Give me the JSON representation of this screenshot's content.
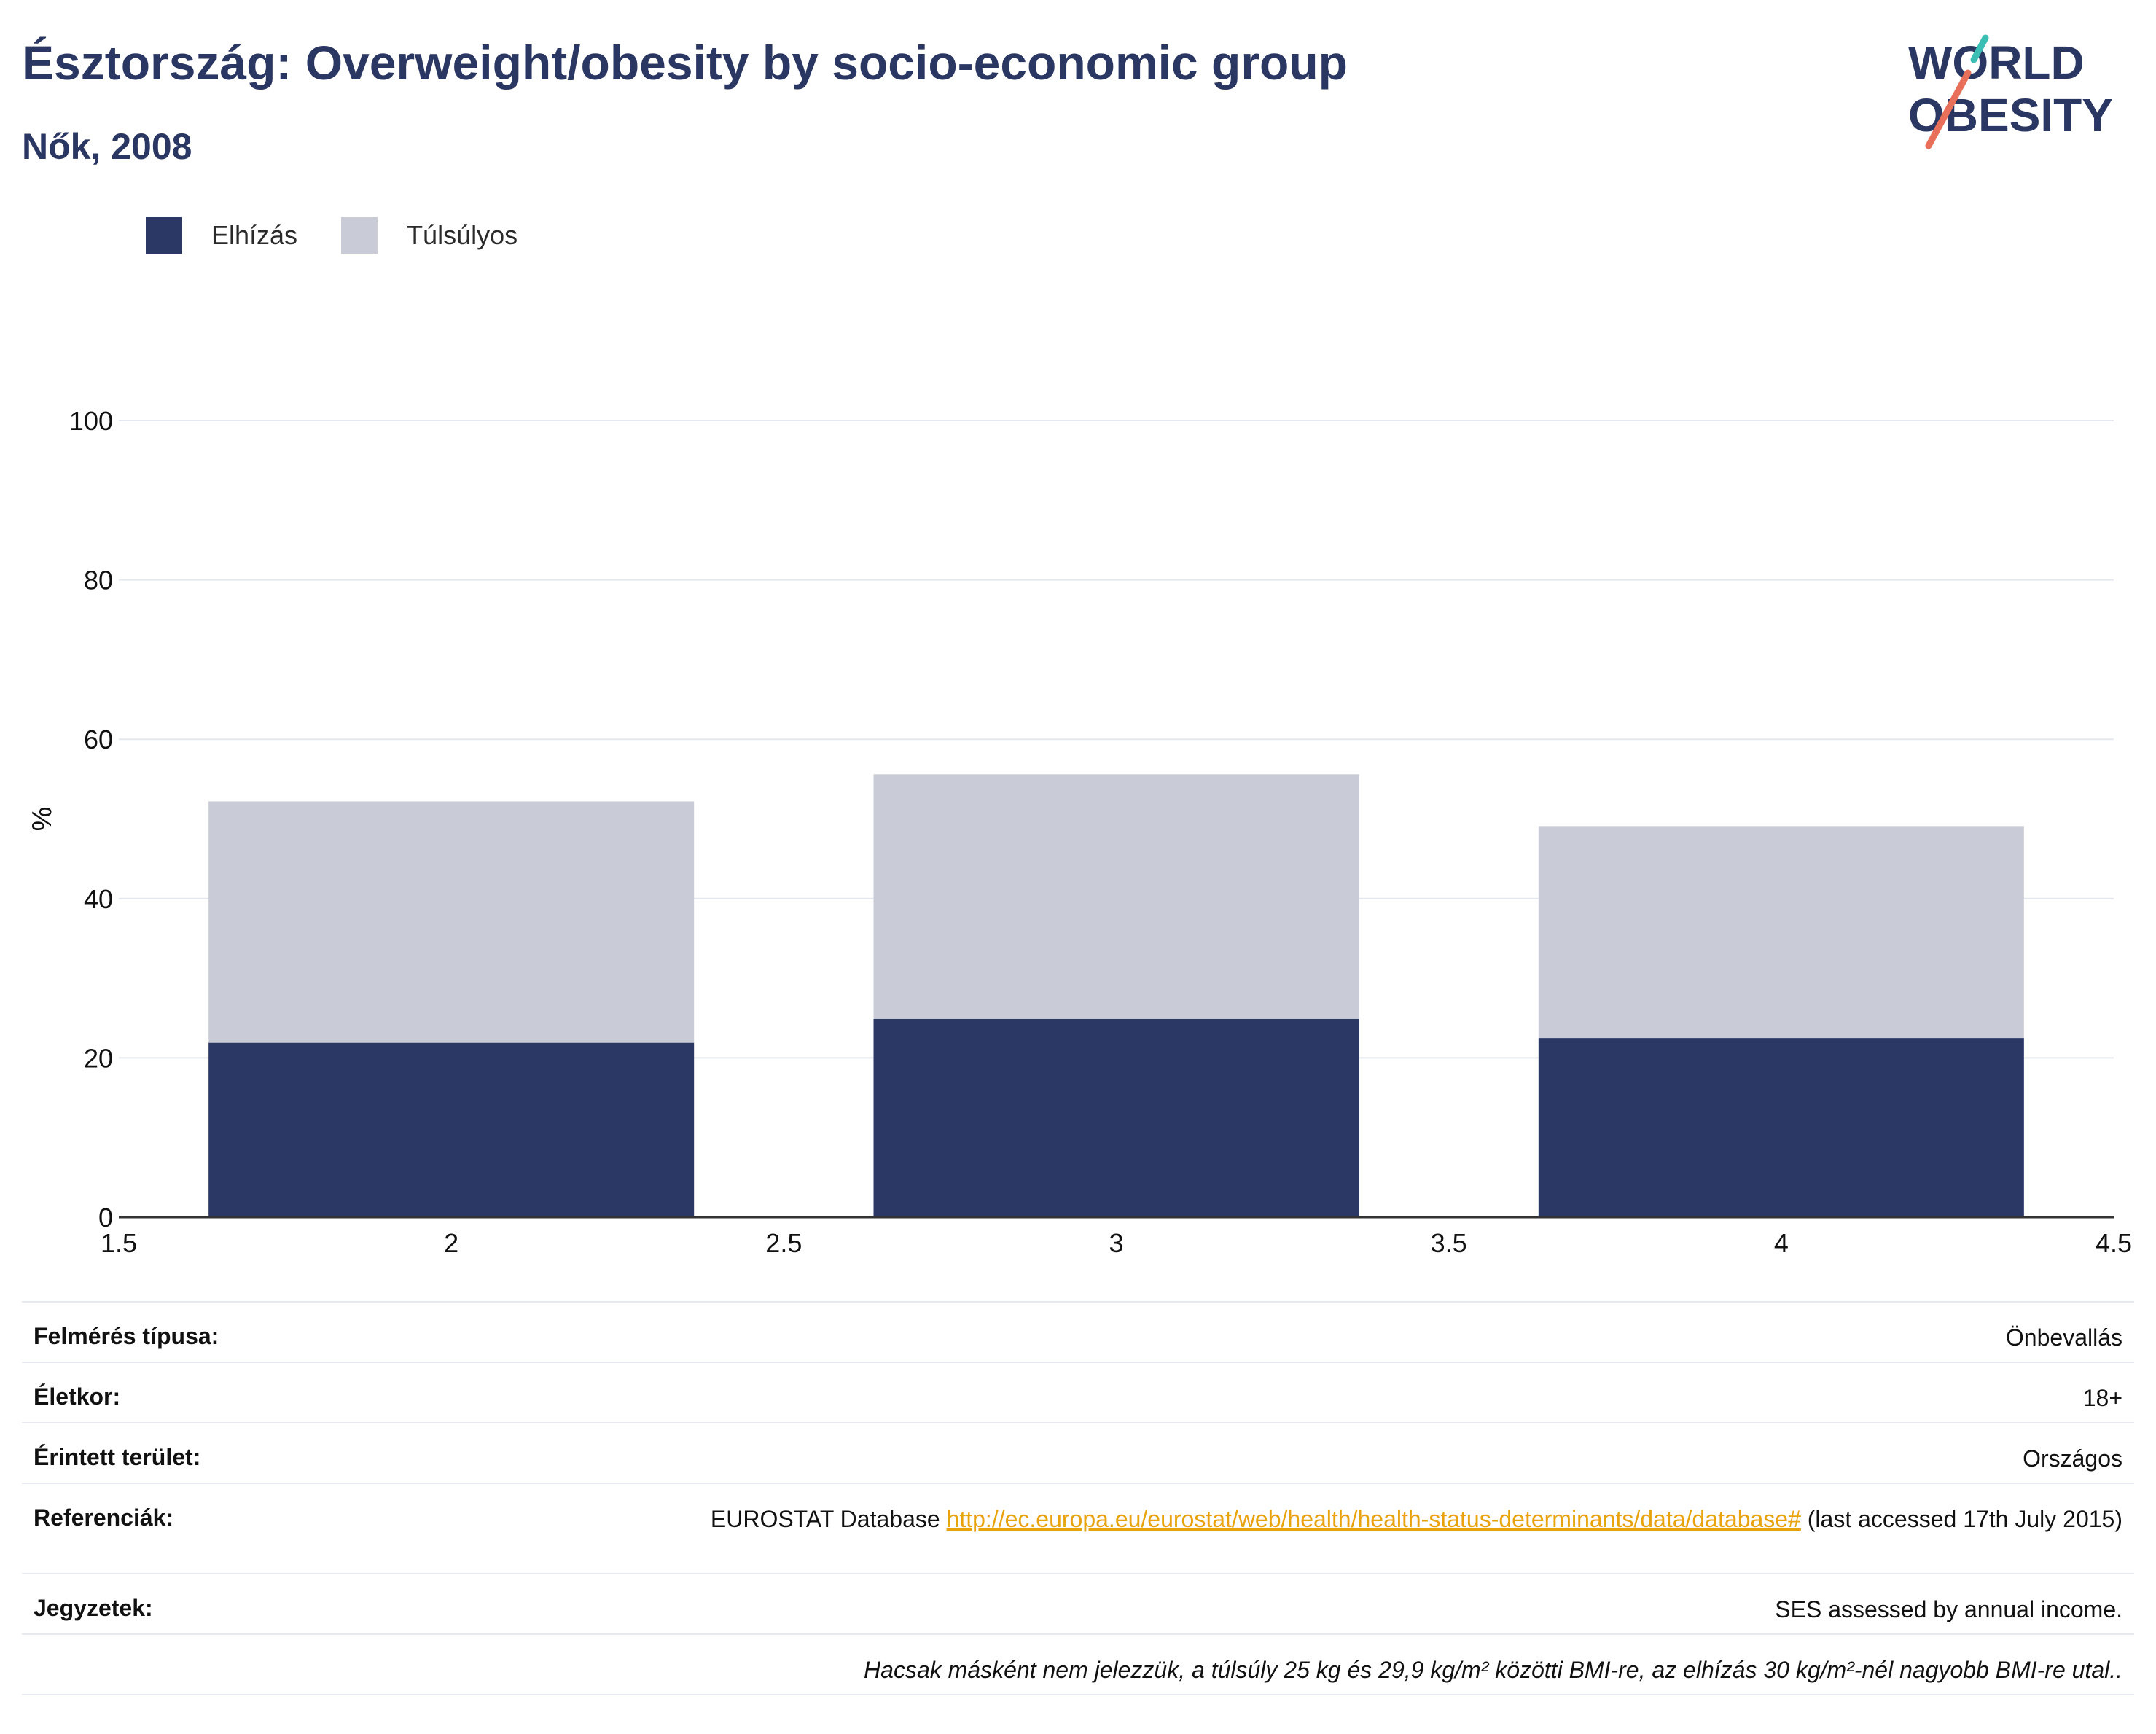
{
  "header": {
    "title": "Észtország: Overweight/obesity by socio-economic group",
    "subtitle": "Nők, 2008"
  },
  "logo": {
    "line1": "WORLD",
    "line2": "OBESITY"
  },
  "legend": {
    "items": [
      {
        "label": "Elhízás",
        "color": "#2b3765"
      },
      {
        "label": "Túlsúlyos",
        "color": "#c9ccd7"
      }
    ]
  },
  "chart_data": {
    "type": "bar",
    "stacked": true,
    "x": [
      2,
      3,
      4
    ],
    "xlim": [
      1.5,
      4.5
    ],
    "xticks": [
      "1.5",
      "2",
      "2.5",
      "3",
      "3.5",
      "4",
      "4.5"
    ],
    "ylim": [
      0,
      100
    ],
    "yticks": [
      "0",
      "20",
      "40",
      "60",
      "80",
      "100"
    ],
    "ylabel": "%",
    "xlabel": "",
    "grid": true,
    "legend_position": "top-left",
    "series": [
      {
        "name": "Elhízás",
        "color": "#2b3765",
        "values": [
          21.9,
          24.9,
          22.5
        ]
      },
      {
        "name": "Túlsúlyos",
        "color": "#c9ccd7",
        "values": [
          30.3,
          30.7,
          26.6
        ]
      }
    ]
  },
  "info": {
    "survey_label": "Felmérés típusa:",
    "survey_value": "Önbevallás",
    "age_label": "Életkor:",
    "age_value": "18+",
    "area_label": "Érintett terület:",
    "area_value": "Országos",
    "ref_label": "Referenciák:",
    "ref_prefix": "EUROSTAT Database",
    "ref_link": "http://ec.europa.eu/eurostat/web/health/health-status-determinants/data/database#",
    "ref_suffix": "(last accessed 17th July 2015)",
    "notes_label": "Jegyzetek:",
    "notes_value": "SES assessed by annual income.",
    "footnote": "Hacsak másként nem jelezzük, a túlsúly 25 kg és 29,9 kg/m² közötti BMI-re, az elhízás 30 kg/m²-nél nagyobb BMI-re utal.."
  }
}
